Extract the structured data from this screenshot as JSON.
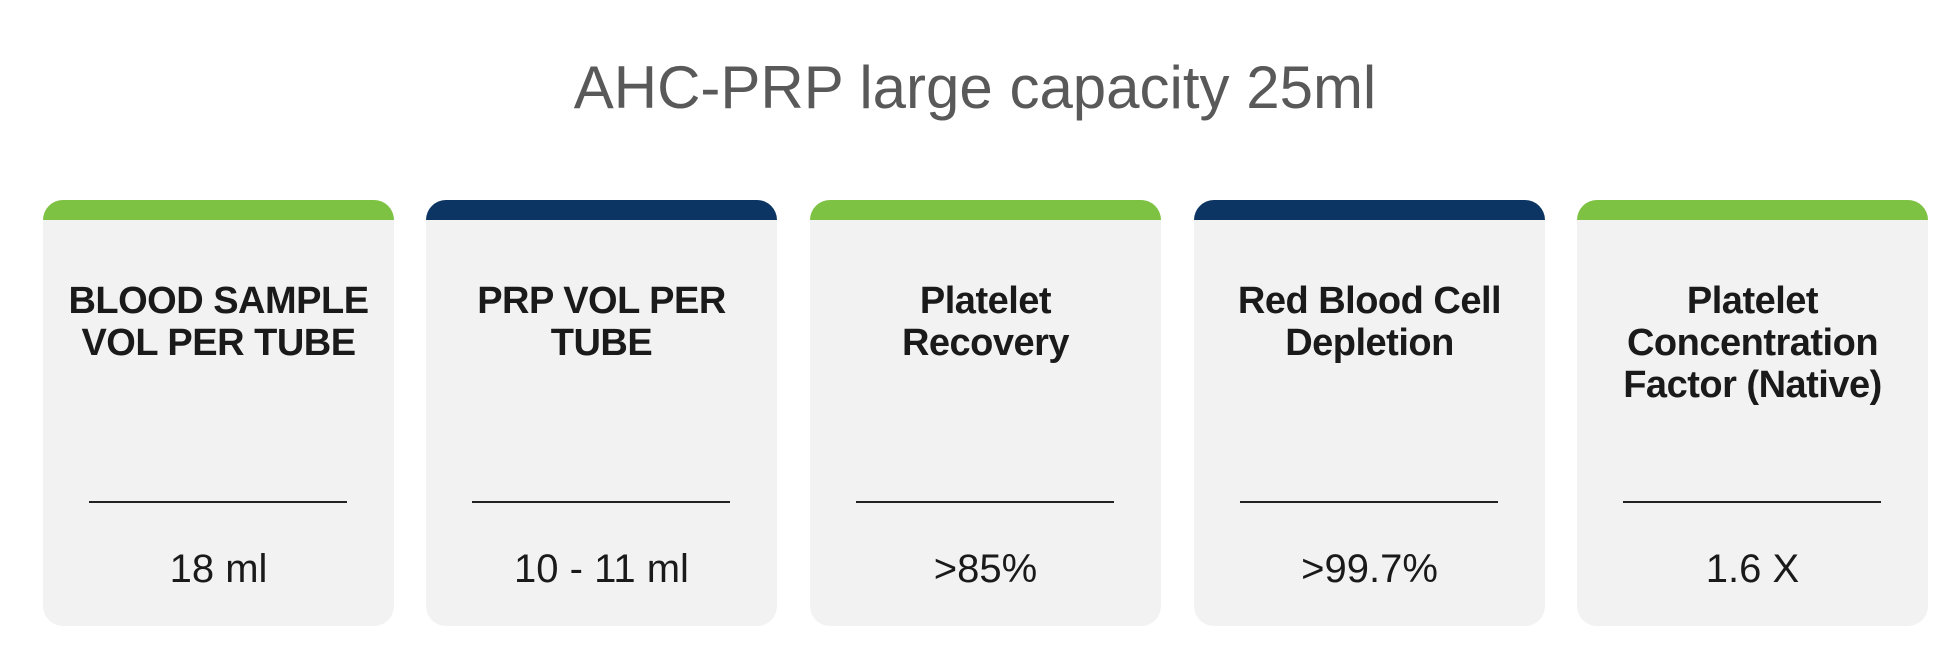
{
  "title": "AHC-PRP large capacity 25ml",
  "colors": {
    "green": "#7dc242",
    "navy": "#0d3563",
    "card_bg": "#f2f2f2"
  },
  "cards": [
    {
      "label": "BLOOD SAMPLE VOL PER TUBE",
      "value": "18 ml",
      "bar_color": "#7dc242"
    },
    {
      "label": "PRP VOL PER TUBE",
      "value": "10 - 11 ml",
      "bar_color": "#0d3563"
    },
    {
      "label": "Platelet Recovery",
      "value": ">85%",
      "bar_color": "#7dc242"
    },
    {
      "label": "Red Blood Cell Depletion",
      "value": ">99.7%",
      "bar_color": "#0d3563"
    },
    {
      "label": "Platelet Concentration Factor (Native)",
      "value": "1.6 X",
      "bar_color": "#7dc242"
    }
  ]
}
